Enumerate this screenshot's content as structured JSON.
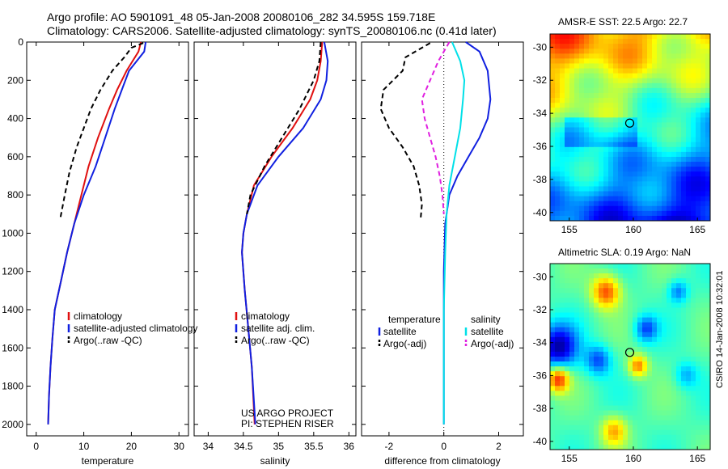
{
  "header": {
    "line1": "Argo profile: AO 5901091_48 05-Jan-2008 20080106_282 34.595S 159.718E",
    "line2": "Climatology: CARS2006. Satellite-adjusted climatology: synTS_20080106.nc (0.41d later)"
  },
  "timestamp": "CSIRO 14-Jan-2008 10:32:01",
  "colors": {
    "climatology": "#e01010",
    "satellite": "#1020e0",
    "argo": "#000000",
    "sat_salinity": "#00e0e8",
    "argo_salinity": "#e020e0"
  },
  "chart_data": [
    {
      "type": "line",
      "xlabel": "temperature",
      "ylabel": "",
      "xlim": [
        -2,
        32
      ],
      "ylim": [
        2060,
        0
      ],
      "xticks": [
        0,
        10,
        20,
        30
      ],
      "yticks": [
        0,
        200,
        400,
        600,
        800,
        1000,
        1200,
        1400,
        1600,
        1800,
        2000
      ],
      "legend": [
        "climatology",
        "satellite-adjusted climatology",
        "Argo(..raw -QC)"
      ],
      "legend_loc": "lower-right",
      "series": [
        {
          "name": "climatology",
          "x": [
            22,
            21.5,
            19,
            17,
            15.3,
            13,
            11,
            9.5,
            8,
            6.5,
            5.2,
            3.9,
            3.4,
            3.0,
            2.7,
            2.5
          ],
          "y": [
            0,
            50,
            150,
            250,
            350,
            500,
            650,
            800,
            950,
            1100,
            1250,
            1400,
            1550,
            1700,
            1850,
            2000
          ]
        },
        {
          "name": "satellite-adjusted climatology",
          "x": [
            23,
            22.7,
            19.5,
            18,
            16.5,
            14.5,
            12.5,
            10,
            8,
            6.5,
            5.2,
            3.9,
            3.4,
            3.0,
            2.7,
            2.5
          ],
          "y": [
            0,
            50,
            150,
            250,
            350,
            500,
            650,
            800,
            950,
            1100,
            1250,
            1400,
            1550,
            1700,
            1850,
            2000
          ]
        },
        {
          "name": "Argo(..raw -QC)",
          "x": [
            22.5,
            20,
            18.5,
            16,
            13.5,
            11.5,
            10,
            8.5,
            7,
            6,
            5
          ],
          "y": [
            5,
            30,
            80,
            150,
            250,
            350,
            450,
            550,
            680,
            800,
            930
          ]
        }
      ],
      "annotations": []
    },
    {
      "type": "line",
      "xlabel": "salinity",
      "ylabel": "",
      "xlim": [
        33.8,
        36.1
      ],
      "ylim": [
        2060,
        0
      ],
      "xticks": [
        34,
        34.5,
        35,
        35.5,
        36
      ],
      "yticks": [
        0,
        200,
        400,
        600,
        800,
        1000,
        1200,
        1400,
        1600,
        1800,
        2000
      ],
      "legend": [
        "climatology",
        "satellite adj. clim.",
        "Argo(..raw -QC)"
      ],
      "legend_loc": "lower-right",
      "series": [
        {
          "name": "climatology",
          "x": [
            35.62,
            35.6,
            35.55,
            35.45,
            35.2,
            34.9,
            34.65,
            34.55,
            34.5,
            34.48,
            34.52,
            34.57,
            34.62,
            34.66
          ],
          "y": [
            0,
            100,
            200,
            300,
            450,
            600,
            750,
            900,
            1000,
            1100,
            1300,
            1500,
            1700,
            2000
          ]
        },
        {
          "name": "satellite adj. clim.",
          "x": [
            35.65,
            35.7,
            35.68,
            35.6,
            35.35,
            35.0,
            34.7,
            34.55,
            34.5,
            34.48,
            34.52,
            34.57,
            34.62,
            34.67
          ],
          "y": [
            0,
            100,
            200,
            300,
            450,
            600,
            750,
            900,
            1000,
            1100,
            1300,
            1500,
            1700,
            2000
          ]
        },
        {
          "name": "Argo(..raw -QC)",
          "x": [
            35.6,
            35.58,
            35.5,
            35.3,
            35.05,
            34.8,
            34.6,
            34.55
          ],
          "y": [
            0,
            100,
            200,
            350,
            500,
            650,
            800,
            900
          ]
        }
      ],
      "annotations": [
        "US ARGO PROJECT",
        "PI: STEPHEN RISER"
      ]
    },
    {
      "type": "line",
      "xlabel": "difference from climatology",
      "ylabel": "",
      "xlim": [
        -3.0,
        2.9
      ],
      "ylim": [
        2060,
        0
      ],
      "xticks": [
        -2,
        0,
        2
      ],
      "yticks": [
        0,
        200,
        400,
        600,
        800,
        1000,
        1200,
        1400,
        1600,
        1800,
        2000
      ],
      "legend": [
        "temperature",
        "satellite",
        "Argo(-adj)",
        "salinity",
        "satellite",
        "Argo(-adj)"
      ],
      "legend_loc": "lower",
      "series": [
        {
          "name": "satellite",
          "group": "temperature",
          "x": [
            0.8,
            1.3,
            1.6,
            1.7,
            1.6,
            1.3,
            0.9,
            0.5,
            0.2,
            0.05,
            0.0,
            0.0
          ],
          "y": [
            0,
            50,
            150,
            300,
            400,
            500,
            600,
            700,
            800,
            950,
            1200,
            2000
          ]
        },
        {
          "name": "Argo(-adj)",
          "group": "temperature",
          "x": [
            -0.5,
            -1.4,
            -1.5,
            -2.2,
            -2.3,
            -2.0,
            -1.5,
            -1.1,
            -0.9,
            -0.8,
            -0.85
          ],
          "y": [
            5,
            80,
            150,
            250,
            350,
            450,
            550,
            650,
            750,
            850,
            930
          ]
        },
        {
          "name": "satellite",
          "group": "salinity",
          "x": [
            0.3,
            0.6,
            0.75,
            0.7,
            0.6,
            0.4,
            0.2,
            0.1,
            0.05,
            0.0,
            0.0
          ],
          "y": [
            0,
            100,
            200,
            300,
            450,
            600,
            750,
            900,
            1100,
            1400,
            2000
          ]
        },
        {
          "name": "Argo(-adj)",
          "group": "salinity",
          "x": [
            0.2,
            -0.2,
            -0.5,
            -0.8,
            -0.7,
            -0.5,
            -0.3,
            -0.15,
            -0.05,
            0.0
          ],
          "y": [
            0,
            100,
            200,
            300,
            400,
            500,
            600,
            700,
            800,
            900
          ]
        }
      ],
      "annotations": []
    },
    {
      "type": "heatmap",
      "title": "AMSR-E SST: 22.5 Argo: 22.7",
      "xlim": [
        153.5,
        166
      ],
      "ylim": [
        -40.5,
        -29.2
      ],
      "xticks": [
        155,
        160,
        165
      ],
      "yticks": [
        -30,
        -32,
        -34,
        -36,
        -38,
        -40
      ],
      "marker": {
        "x": 159.718,
        "y": -34.595
      }
    },
    {
      "type": "heatmap",
      "title": "Altimetric SLA: 0.19 Argo: NaN",
      "xlim": [
        153.5,
        166
      ],
      "ylim": [
        -40.5,
        -29.2
      ],
      "xticks": [
        155,
        160,
        165
      ],
      "yticks": [
        -30,
        -32,
        -34,
        -36,
        -38,
        -40
      ],
      "marker": {
        "x": 159.718,
        "y": -34.595
      }
    }
  ]
}
